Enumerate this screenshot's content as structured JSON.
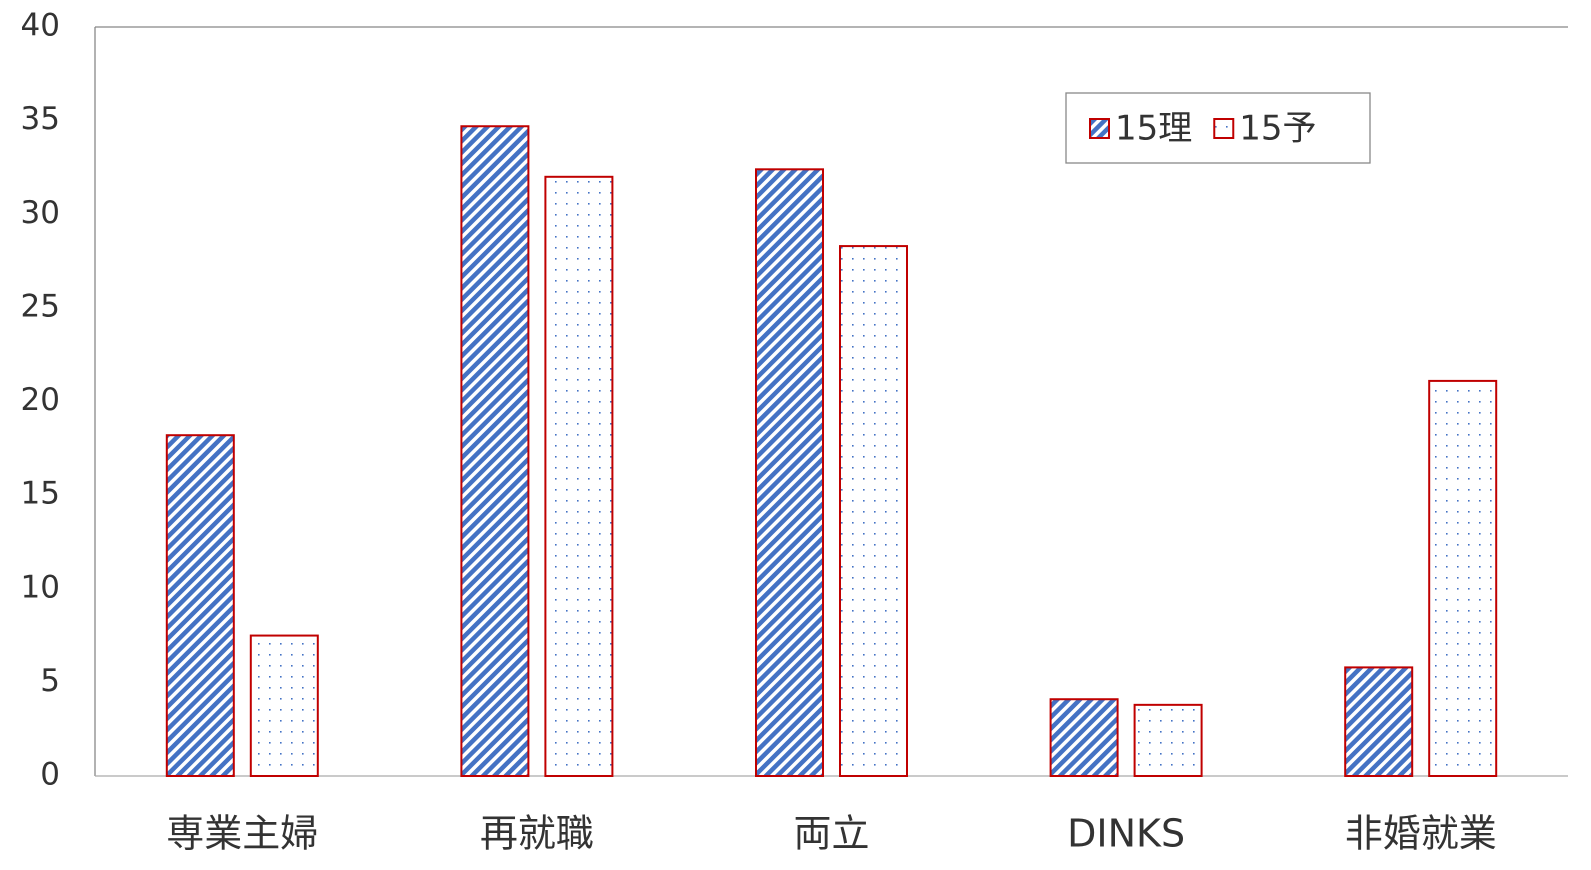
{
  "chart_data": {
    "type": "bar",
    "categories": [
      "専業主婦",
      "再就職",
      "両立",
      "DINKS",
      "非婚就業"
    ],
    "series": [
      {
        "name": "15理",
        "color": "#4472c4",
        "pattern": "diagonal",
        "values": [
          18.2,
          34.7,
          32.4,
          4.1,
          5.8
        ]
      },
      {
        "name": "15予",
        "color": "#4472c4",
        "pattern": "dots",
        "values": [
          7.5,
          32.0,
          28.3,
          3.8,
          21.1
        ]
      }
    ],
    "edge_color": "#c00000",
    "ylim": [
      0,
      40
    ],
    "yticks": [
      0,
      5,
      10,
      15,
      20,
      25,
      30,
      35,
      40
    ],
    "grid": false,
    "legend": "upper right"
  }
}
